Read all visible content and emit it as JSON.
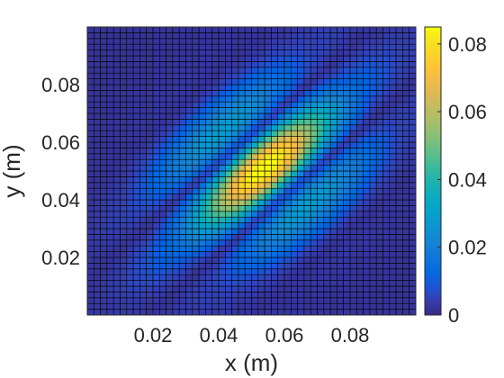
{
  "chart_data": {
    "type": "heatmap",
    "title": "",
    "xlabel": "x (m)",
    "ylabel": "y (m)",
    "xlim": [
      0,
      0.1
    ],
    "ylim": [
      0,
      0.1
    ],
    "grid": "50x50 cells with black edges",
    "x_ticks": [
      0.02,
      0.04,
      0.06,
      0.08
    ],
    "x_tick_labels": [
      "0.02",
      "0.04",
      "0.06",
      "0.08"
    ],
    "y_ticks": [
      0.02,
      0.04,
      0.06,
      0.08
    ],
    "y_tick_labels": [
      "0.02",
      "0.04",
      "0.06",
      "0.08"
    ],
    "colorbar": {
      "limits": [
        0,
        0.085
      ],
      "ticks": [
        0,
        0.02,
        0.04,
        0.06,
        0.08
      ],
      "tick_labels": [
        "0",
        "0.02",
        "0.04",
        "0.06",
        "0.08"
      ],
      "colormap": "parula",
      "placement": "right"
    },
    "features": [
      {
        "description": "peak",
        "x": 0.05,
        "y": 0.046,
        "value": 0.07
      },
      {
        "description": "peak",
        "x": 0.06,
        "y": 0.055,
        "value": 0.072
      },
      {
        "description": "outer lobe",
        "x": 0.035,
        "y": 0.034,
        "value": 0.05
      },
      {
        "description": "outer lobe",
        "x": 0.075,
        "y": 0.065,
        "value": 0.05
      }
    ]
  }
}
